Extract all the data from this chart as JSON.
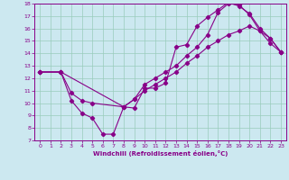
{
  "bg_color": "#cce8f0",
  "line_color": "#880088",
  "grid_color": "#99ccbb",
  "xlabel": "Windchill (Refroidissement éolien,°C)",
  "xlim": [
    -0.5,
    23.5
  ],
  "ylim": [
    7,
    18
  ],
  "yticks": [
    7,
    8,
    9,
    10,
    11,
    12,
    13,
    14,
    15,
    16,
    17,
    18
  ],
  "xticks": [
    0,
    1,
    2,
    3,
    4,
    5,
    6,
    7,
    8,
    9,
    10,
    11,
    12,
    13,
    14,
    15,
    16,
    17,
    18,
    19,
    20,
    21,
    22,
    23
  ],
  "line1_x": [
    0,
    2,
    3,
    4,
    5,
    6,
    7,
    8,
    9,
    10,
    11,
    12,
    13,
    14,
    15,
    16,
    17,
    18,
    19,
    20,
    21,
    22,
    23
  ],
  "line1_y": [
    12.5,
    12.5,
    10.2,
    9.2,
    8.8,
    7.5,
    7.5,
    9.7,
    9.6,
    11.2,
    11.2,
    11.6,
    14.5,
    14.7,
    16.2,
    16.9,
    17.5,
    18.1,
    17.8,
    17.2,
    16.0,
    15.2,
    14.1
  ],
  "line2_x": [
    0,
    2,
    3,
    4,
    5,
    8,
    9,
    10,
    11,
    12,
    13,
    14,
    15,
    16,
    17,
    18,
    19,
    20,
    21,
    22,
    23
  ],
  "line2_y": [
    12.5,
    12.5,
    10.8,
    10.2,
    10.0,
    9.7,
    10.3,
    11.5,
    12.0,
    12.5,
    13.0,
    13.8,
    14.5,
    15.5,
    17.3,
    18.0,
    17.9,
    17.1,
    15.8,
    14.8,
    14.1
  ],
  "line3_x": [
    0,
    2,
    8,
    9,
    10,
    11,
    12,
    13,
    14,
    15,
    16,
    17,
    18,
    19,
    20,
    21,
    22,
    23
  ],
  "line3_y": [
    12.5,
    12.5,
    9.7,
    10.3,
    11.0,
    11.5,
    12.0,
    12.5,
    13.2,
    13.8,
    14.5,
    15.0,
    15.5,
    15.8,
    16.2,
    15.8,
    15.2,
    14.1
  ]
}
